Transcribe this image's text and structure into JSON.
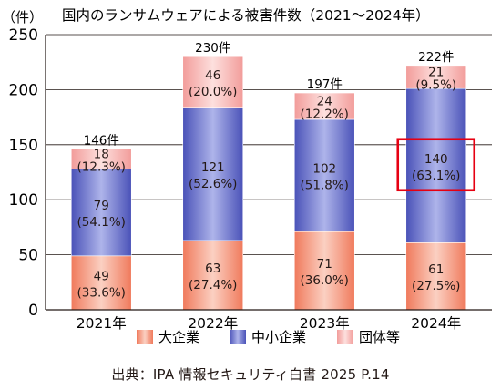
{
  "chart_data": {
    "type": "bar",
    "stacked": true,
    "title": "国内のランサムウェアによる被害件数（2021〜2024年）",
    "ylabel": "（件）",
    "ylim": [
      0,
      250
    ],
    "yticks": [
      "0",
      "50",
      "100",
      "150",
      "200",
      "250"
    ],
    "categories": [
      "2021年",
      "2022年",
      "2023年",
      "2024年"
    ],
    "totals": [
      "146件",
      "230件",
      "197件",
      "222件"
    ],
    "series": [
      {
        "name": "大企業",
        "values": [
          49,
          63,
          71,
          61
        ],
        "labels": [
          "49",
          "63",
          "71",
          "61"
        ],
        "pct_labels": [
          "(33.6%)",
          "(27.4%)",
          "(36.0%)",
          "(27.5%)"
        ],
        "color": "#f2967c"
      },
      {
        "name": "中小企業",
        "values": [
          79,
          121,
          102,
          140
        ],
        "labels": [
          "79",
          "121",
          "102",
          "140"
        ],
        "pct_labels": [
          "(54.1%)",
          "(52.6%)",
          "(51.8%)",
          "(63.1%)"
        ],
        "color": "#6a73c9"
      },
      {
        "name": "団体等",
        "values": [
          18,
          46,
          24,
          21
        ],
        "labels": [
          "18",
          "46",
          "24",
          "21"
        ],
        "pct_labels": [
          "(12.3%)",
          "(20.0%)",
          "(12.2%)",
          "(9.5%)"
        ],
        "color": "#f5b3b0"
      }
    ],
    "legend_position": "bottom",
    "grid": true,
    "highlight": {
      "category_index": 3,
      "series_index": 1,
      "color": "#e60012"
    }
  },
  "source": "出典：IPA 情報セキュリティ白書 2025 P.14"
}
